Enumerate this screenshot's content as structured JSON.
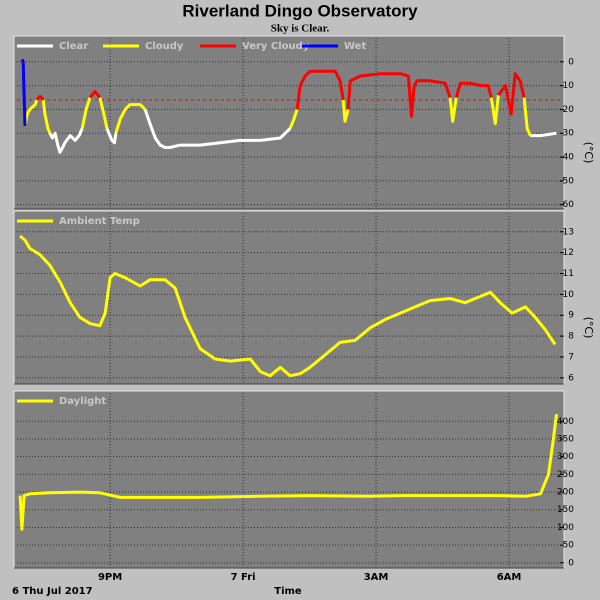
{
  "header": {
    "title": "Riverland Dingo Observatory",
    "subtitle": "Sky is Clear."
  },
  "chart_data": [
    {
      "type": "line",
      "ylabel": "(°C)",
      "xlim": [
        18.9,
        31.15
      ],
      "ylim": [
        -61,
        10
      ],
      "yticks": [
        0,
        -10,
        -20,
        -30,
        -40,
        -50,
        -60
      ],
      "xticks": [
        21,
        24,
        27,
        30
      ],
      "grid": true,
      "threshold": {
        "value": -16,
        "color": "#ff0000"
      },
      "series": [
        {
          "name": "Clear",
          "color": "#ffffff",
          "x": [
            19.64,
            19.7,
            19.76,
            19.82,
            19.87,
            19.93,
            19.98,
            20.1,
            20.21,
            20.3,
            20.37,
            null,
            20.93,
            21.04,
            21.1,
            21.13,
            null,
            21.79,
            21.9,
            22.02,
            22.13,
            22.24,
            22.35,
            22.58,
            23.03,
            23.48,
            23.93,
            24.39,
            24.84,
            25.06,
            null,
            30.48,
            30.71,
            30.9,
            31.07
          ],
          "values": [
            -30,
            -32,
            -30,
            -35,
            -38,
            -36,
            -34,
            -31,
            -33,
            -31,
            -28,
            null,
            -28,
            -33,
            -34,
            -30,
            null,
            -20,
            -26,
            -32,
            -35,
            -36,
            -36,
            -35,
            -35,
            -34,
            -33,
            -33,
            -32,
            -28,
            null,
            -31,
            -31,
            -30.5,
            -30
          ]
        },
        {
          "name": "Cloudy",
          "color": "#ffff00",
          "x": [
            19.08,
            19.13,
            19.19,
            19.31,
            19.35,
            null,
            19.49,
            19.53,
            19.6,
            19.64,
            null,
            20.37,
            20.46,
            20.55,
            null,
            20.77,
            20.86,
            20.93,
            null,
            21.13,
            21.23,
            21.34,
            21.45,
            21.68,
            21.79,
            null,
            25.06,
            25.15,
            25.22,
            null,
            26.26,
            26.3,
            26.37,
            null,
            28.67,
            28.73,
            28.81,
            null,
            29.6,
            29.69,
            29.76,
            null,
            30.34,
            30.41,
            30.48
          ],
          "values": [
            -27,
            -22,
            -20,
            -18,
            -16,
            null,
            -16,
            -22,
            -28,
            -30,
            null,
            -28,
            -20,
            -15,
            null,
            -15,
            -22,
            -28,
            null,
            -30,
            -24,
            -20,
            -18,
            -18,
            -20,
            null,
            -28,
            -24,
            -20,
            null,
            -16,
            -25,
            -20,
            null,
            -15,
            -25,
            -15,
            null,
            -15,
            -26,
            -14,
            null,
            -15,
            -28,
            -31
          ]
        },
        {
          "name": "Very Cloudy",
          "color": "#ff0000",
          "x": [
            19.35,
            19.42,
            19.49,
            null,
            20.55,
            20.66,
            20.77,
            null,
            25.22,
            25.29,
            25.4,
            25.51,
            25.74,
            26.08,
            26.19,
            26.26,
            null,
            26.37,
            26.42,
            26.64,
            27.09,
            27.55,
            27.73,
            27.8,
            27.86,
            27.93,
            28.22,
            28.56,
            28.67,
            null,
            28.81,
            28.9,
            29.12,
            29.35,
            29.53,
            29.6,
            null,
            29.76,
            29.92,
            30.05,
            30.14,
            30.25,
            30.34
          ],
          "values": [
            -16,
            -14.5,
            -16,
            null,
            -15,
            -12.5,
            -15,
            null,
            -20,
            -10,
            -6,
            -4,
            -4,
            -4,
            -8,
            -16,
            null,
            -20,
            -8,
            -6,
            -5,
            -5,
            -6,
            -23,
            -10,
            -8,
            -8,
            -9,
            -15,
            null,
            -15,
            -9,
            -9,
            -10,
            -10,
            -15,
            null,
            -14,
            -10,
            -22,
            -5,
            -8,
            -15
          ]
        },
        {
          "name": "Wet",
          "color": "#0000ff",
          "x": [
            19.02,
            19.04,
            19.06,
            19.08
          ],
          "values": [
            1,
            0,
            -14,
            -27
          ]
        }
      ]
    },
    {
      "type": "line",
      "ylabel": "(°C)",
      "xlim": [
        18.9,
        31.15
      ],
      "ylim": [
        5.8,
        13.9
      ],
      "yticks": [
        13,
        12,
        11,
        10,
        9,
        8,
        7,
        6
      ],
      "xticks": [
        21,
        24,
        27,
        30
      ],
      "grid": true,
      "series": [
        {
          "name": "Ambient Temp",
          "color": "#ffff00",
          "x": [
            18.97,
            19.08,
            19.19,
            19.42,
            19.64,
            19.87,
            20.1,
            20.32,
            20.55,
            20.77,
            20.89,
            21.0,
            21.11,
            21.34,
            21.68,
            21.9,
            22.24,
            22.47,
            22.69,
            23.03,
            23.37,
            23.71,
            24.16,
            24.39,
            24.61,
            24.84,
            25.06,
            25.29,
            25.51,
            25.85,
            26.19,
            26.53,
            26.87,
            27.21,
            27.55,
            27.88,
            28.22,
            28.67,
            29.01,
            29.35,
            29.58,
            29.8,
            30.07,
            30.37,
            30.59,
            30.82,
            31.04
          ],
          "values": [
            12.8,
            12.6,
            12.2,
            11.9,
            11.4,
            10.6,
            9.6,
            8.9,
            8.6,
            8.5,
            9.1,
            10.8,
            11.0,
            10.8,
            10.4,
            10.7,
            10.7,
            10.3,
            8.9,
            7.4,
            6.9,
            6.8,
            6.9,
            6.3,
            6.1,
            6.5,
            6.1,
            6.2,
            6.5,
            7.1,
            7.7,
            7.8,
            8.4,
            8.8,
            9.1,
            9.4,
            9.7,
            9.8,
            9.6,
            9.9,
            10.1,
            9.6,
            9.1,
            9.4,
            8.9,
            8.3,
            7.6
          ]
        }
      ]
    },
    {
      "type": "line",
      "xlabel": "Time",
      "date_label": "6 Thu Jul 2017",
      "xlim": [
        18.9,
        31.15
      ],
      "ylim": [
        -9,
        480
      ],
      "yticks": [
        400,
        350,
        300,
        250,
        200,
        150,
        100,
        50,
        0
      ],
      "xticks": [
        {
          "value": 21,
          "label": "9PM"
        },
        {
          "value": 24,
          "label": "7 Fri"
        },
        {
          "value": 27,
          "label": "3AM"
        },
        {
          "value": 30,
          "label": "6AM"
        }
      ],
      "grid": true,
      "series": [
        {
          "name": "Daylight",
          "color": "#ffff00",
          "x": [
            18.97,
            19.01,
            19.06,
            19.19,
            19.64,
            20.32,
            20.77,
            21.23,
            22.24,
            23.03,
            24.39,
            25.51,
            26.87,
            27.55,
            28.67,
            29.8,
            30.37,
            30.71,
            30.89,
            31.0,
            31.07
          ],
          "values": [
            190,
            95,
            190,
            195,
            198,
            200,
            198,
            185,
            185,
            185,
            188,
            190,
            188,
            190,
            190,
            190,
            188,
            195,
            250,
            350,
            420
          ]
        }
      ]
    }
  ]
}
